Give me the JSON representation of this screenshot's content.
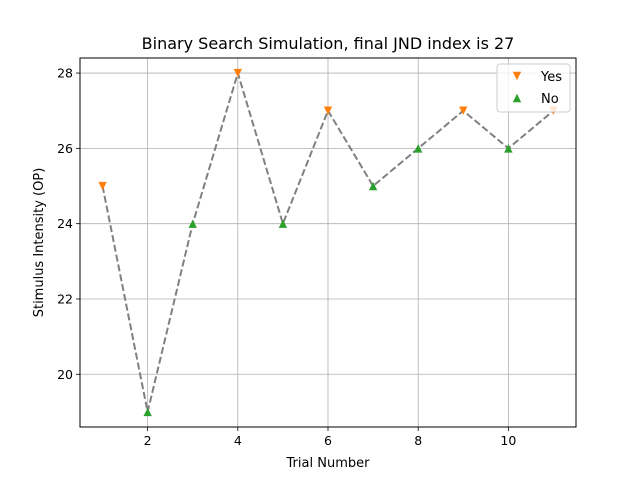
{
  "chart_data": {
    "type": "line",
    "title": "Binary Search Simulation, final JND index is 27",
    "xlabel": "Trial Number",
    "ylabel": "Stimulus Intensity (OP)",
    "xlim": [
      0.5,
      11.5
    ],
    "ylim": [
      18.6,
      28.4
    ],
    "xticks": [
      2,
      4,
      6,
      8,
      10
    ],
    "yticks": [
      20,
      22,
      24,
      26,
      28
    ],
    "grid": true,
    "legend_position": "top-right",
    "line": {
      "x": [
        1,
        2,
        3,
        4,
        5,
        6,
        7,
        8,
        9,
        10,
        11
      ],
      "y": [
        25,
        19,
        24,
        28,
        24,
        27,
        25,
        26,
        27,
        26,
        27
      ],
      "color": "#808080",
      "style": "dashed"
    },
    "series": [
      {
        "name": "Yes",
        "marker": "triangle-down",
        "color": "#ff7f0e",
        "points": [
          [
            1,
            25
          ],
          [
            4,
            28
          ],
          [
            6,
            27
          ],
          [
            9,
            27
          ],
          [
            11,
            27
          ]
        ]
      },
      {
        "name": "No",
        "marker": "triangle-up",
        "color": "#2ca02c",
        "points": [
          [
            2,
            19
          ],
          [
            3,
            24
          ],
          [
            5,
            24
          ],
          [
            7,
            25
          ],
          [
            8,
            26
          ],
          [
            10,
            26
          ]
        ]
      }
    ]
  }
}
